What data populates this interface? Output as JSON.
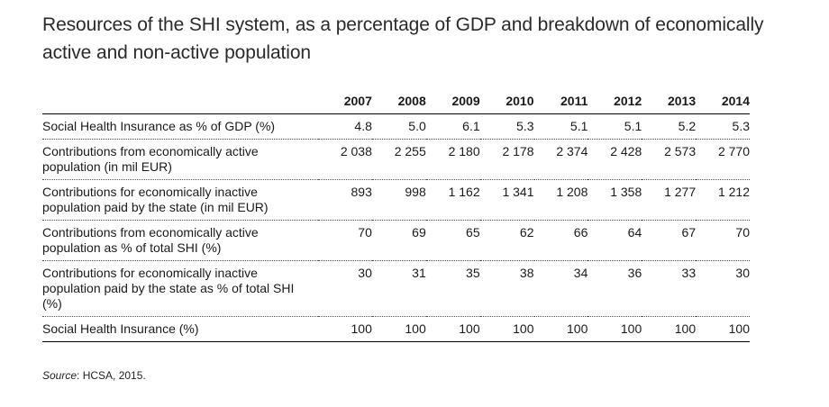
{
  "title": "Resources of the SHI system, as a percentage of GDP and breakdown of economically active and non-active population",
  "table": {
    "years": [
      "2007",
      "2008",
      "2009",
      "2010",
      "2011",
      "2012",
      "2013",
      "2014"
    ],
    "rows": [
      {
        "label": "Social Health Insurance as % of GDP (%)",
        "values": [
          "4.8",
          "5.0",
          "6.1",
          "5.3",
          "5.1",
          "5.1",
          "5.2",
          "5.3"
        ]
      },
      {
        "label": "Contributions from economically active population (in mil EUR)",
        "values": [
          "2 038",
          "2 255",
          "2 180",
          "2 178",
          "2 374",
          "2 428",
          "2 573",
          "2 770"
        ]
      },
      {
        "label": "Contributions for economically inactive population paid by the state (in mil EUR)",
        "values": [
          "893",
          "998",
          "1 162",
          "1 341",
          "1 208",
          "1 358",
          "1 277",
          "1 212"
        ]
      },
      {
        "label": "Contributions from economically active population as % of total SHI (%)",
        "values": [
          "70",
          "69",
          "65",
          "62",
          "66",
          "64",
          "67",
          "70"
        ]
      },
      {
        "label": "Contributions for economically inactive population paid by the state as % of total SHI (%)",
        "values": [
          "30",
          "31",
          "35",
          "38",
          "34",
          "36",
          "33",
          "30"
        ]
      },
      {
        "label": "Social Health Insurance (%)",
        "values": [
          "100",
          "100",
          "100",
          "100",
          "100",
          "100",
          "100",
          "100"
        ]
      }
    ]
  },
  "source": {
    "prefix": "Source",
    "text": ": HCSA, 2015."
  }
}
